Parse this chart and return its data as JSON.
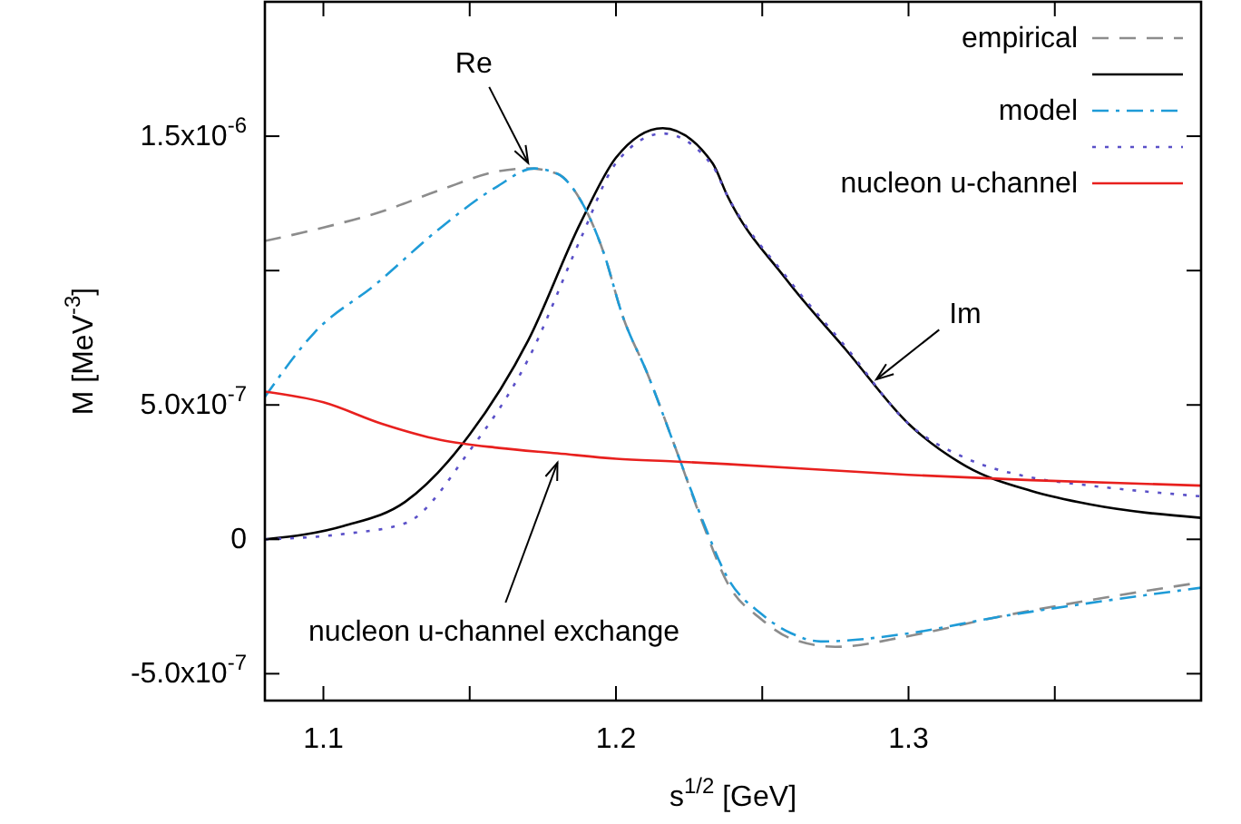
{
  "chart_data": {
    "type": "line",
    "xlabel": "s$^{1/2}$ [GeV]",
    "ylabel": "M [MeV$^{-3}$]",
    "xlim": [
      1.08,
      1.4
    ],
    "xticks": [
      1.1,
      {
        "value": 1.15,
        "label": null
      },
      1.2,
      {
        "value": 1.25,
        "label": null
      },
      1.3,
      {
        "value": 1.35,
        "label": null
      }
    ],
    "ylim": [
      -6e-07,
      2e-06
    ],
    "yticks": [
      {
        "value": -5e-07,
        "label": "-5.0x10$^{-7}$"
      },
      {
        "value": 0,
        "label": "0"
      },
      {
        "value": 5e-07,
        "label": "5.0x10$^{-7}$"
      },
      {
        "value": 1e-06,
        "label": null
      },
      {
        "value": 1.5e-06,
        "label": "1.5x10$^{-6}$"
      }
    ],
    "grid": false,
    "legend": "top right",
    "marker": "none",
    "series": [
      {
        "name": "empirical",
        "color": "#8c8c8c",
        "line_style": "dashed",
        "x": [
          1.08,
          1.1,
          1.12,
          1.14,
          1.16,
          1.17,
          1.18,
          1.188,
          1.196,
          1.202,
          1.211,
          1.221,
          1.23,
          1.238,
          1.25,
          1.26,
          1.275,
          1.3,
          1.33,
          1.36,
          1.4
        ],
        "values": [
          1.11e-06,
          1.16e-06,
          1.22e-06,
          1.3e-06,
          1.37e-06,
          1.38e-06,
          1.36e-06,
          1.26e-06,
          1.06e-06,
          8.4e-07,
          6.1e-07,
          3.2e-07,
          5e-08,
          -1.6e-07,
          -3e-07,
          -3.7e-07,
          -4e-07,
          -3.6e-07,
          -2.9e-07,
          -2.3e-07,
          -1.6e-07
        ]
      },
      {
        "color": "#000000",
        "line_style": "solid",
        "x": [
          1.08,
          1.107,
          1.128,
          1.15,
          1.17,
          1.188,
          1.2,
          1.216,
          1.233,
          1.238,
          1.258,
          1.279,
          1.3,
          1.32,
          1.342,
          1.362,
          1.4
        ],
        "values": [
          0,
          5e-08,
          1.4e-07,
          3.9e-07,
          7.4e-07,
          1.18e-06,
          1.42e-06,
          1.53e-06,
          1.4e-06,
          1.28e-06,
          9.7e-07,
          7e-07,
          4.3e-07,
          2.7e-07,
          1.8e-07,
          1.3e-07,
          8e-08
        ]
      },
      {
        "name": "model",
        "color": "#1e9bd7",
        "line_style": "dashdot",
        "x": [
          1.08,
          1.097,
          1.118,
          1.139,
          1.159,
          1.172,
          1.18,
          1.188,
          1.196,
          1.202,
          1.211,
          1.221,
          1.23,
          1.238,
          1.25,
          1.26,
          1.27,
          1.3,
          1.33,
          1.36,
          1.4
        ],
        "values": [
          5.3e-07,
          7.7e-07,
          9.5e-07,
          1.15e-06,
          1.31e-06,
          1.38e-06,
          1.36e-06,
          1.26e-06,
          1.06e-06,
          8.4e-07,
          6.1e-07,
          3.2e-07,
          6e-08,
          -1.4e-07,
          -2.8e-07,
          -3.5e-07,
          -3.8e-07,
          -3.5e-07,
          -2.9e-07,
          -2.4e-07,
          -1.8e-07
        ]
      },
      {
        "color": "#5a50c8",
        "line_style": "dotted",
        "x": [
          1.08,
          1.107,
          1.128,
          1.15,
          1.17,
          1.188,
          1.2,
          1.216,
          1.233,
          1.238,
          1.258,
          1.279,
          1.3,
          1.32,
          1.342,
          1.362,
          1.4
        ],
        "values": [
          0,
          2e-08,
          6e-08,
          3.3e-07,
          6.7e-07,
          1.12e-06,
          1.4e-06,
          1.51e-06,
          1.39e-06,
          1.28e-06,
          9.8e-07,
          7.1e-07,
          4.3e-07,
          3e-07,
          2.3e-07,
          2e-07,
          1.6e-07
        ]
      },
      {
        "name": "nucleon u-channel",
        "color": "#e8201e",
        "line_style": "solid",
        "x": [
          1.08,
          1.1,
          1.12,
          1.14,
          1.16,
          1.18,
          1.2,
          1.22,
          1.238,
          1.3,
          1.342,
          1.4
        ],
        "values": [
          5.5e-07,
          5.1e-07,
          4.3e-07,
          3.7e-07,
          3.4e-07,
          3.2e-07,
          3e-07,
          2.9e-07,
          2.8e-07,
          2.4e-07,
          2.2e-07,
          2e-07
        ]
      }
    ],
    "annotations": [
      {
        "text": "Re",
        "x": 1.17,
        "y": 1.4e-06
      },
      {
        "text": "Im",
        "x": 1.289,
        "y": 5.95e-07
      },
      {
        "text": "nucleon u-channel exchange",
        "x": 1.18,
        "y": 2.85e-07
      }
    ]
  }
}
